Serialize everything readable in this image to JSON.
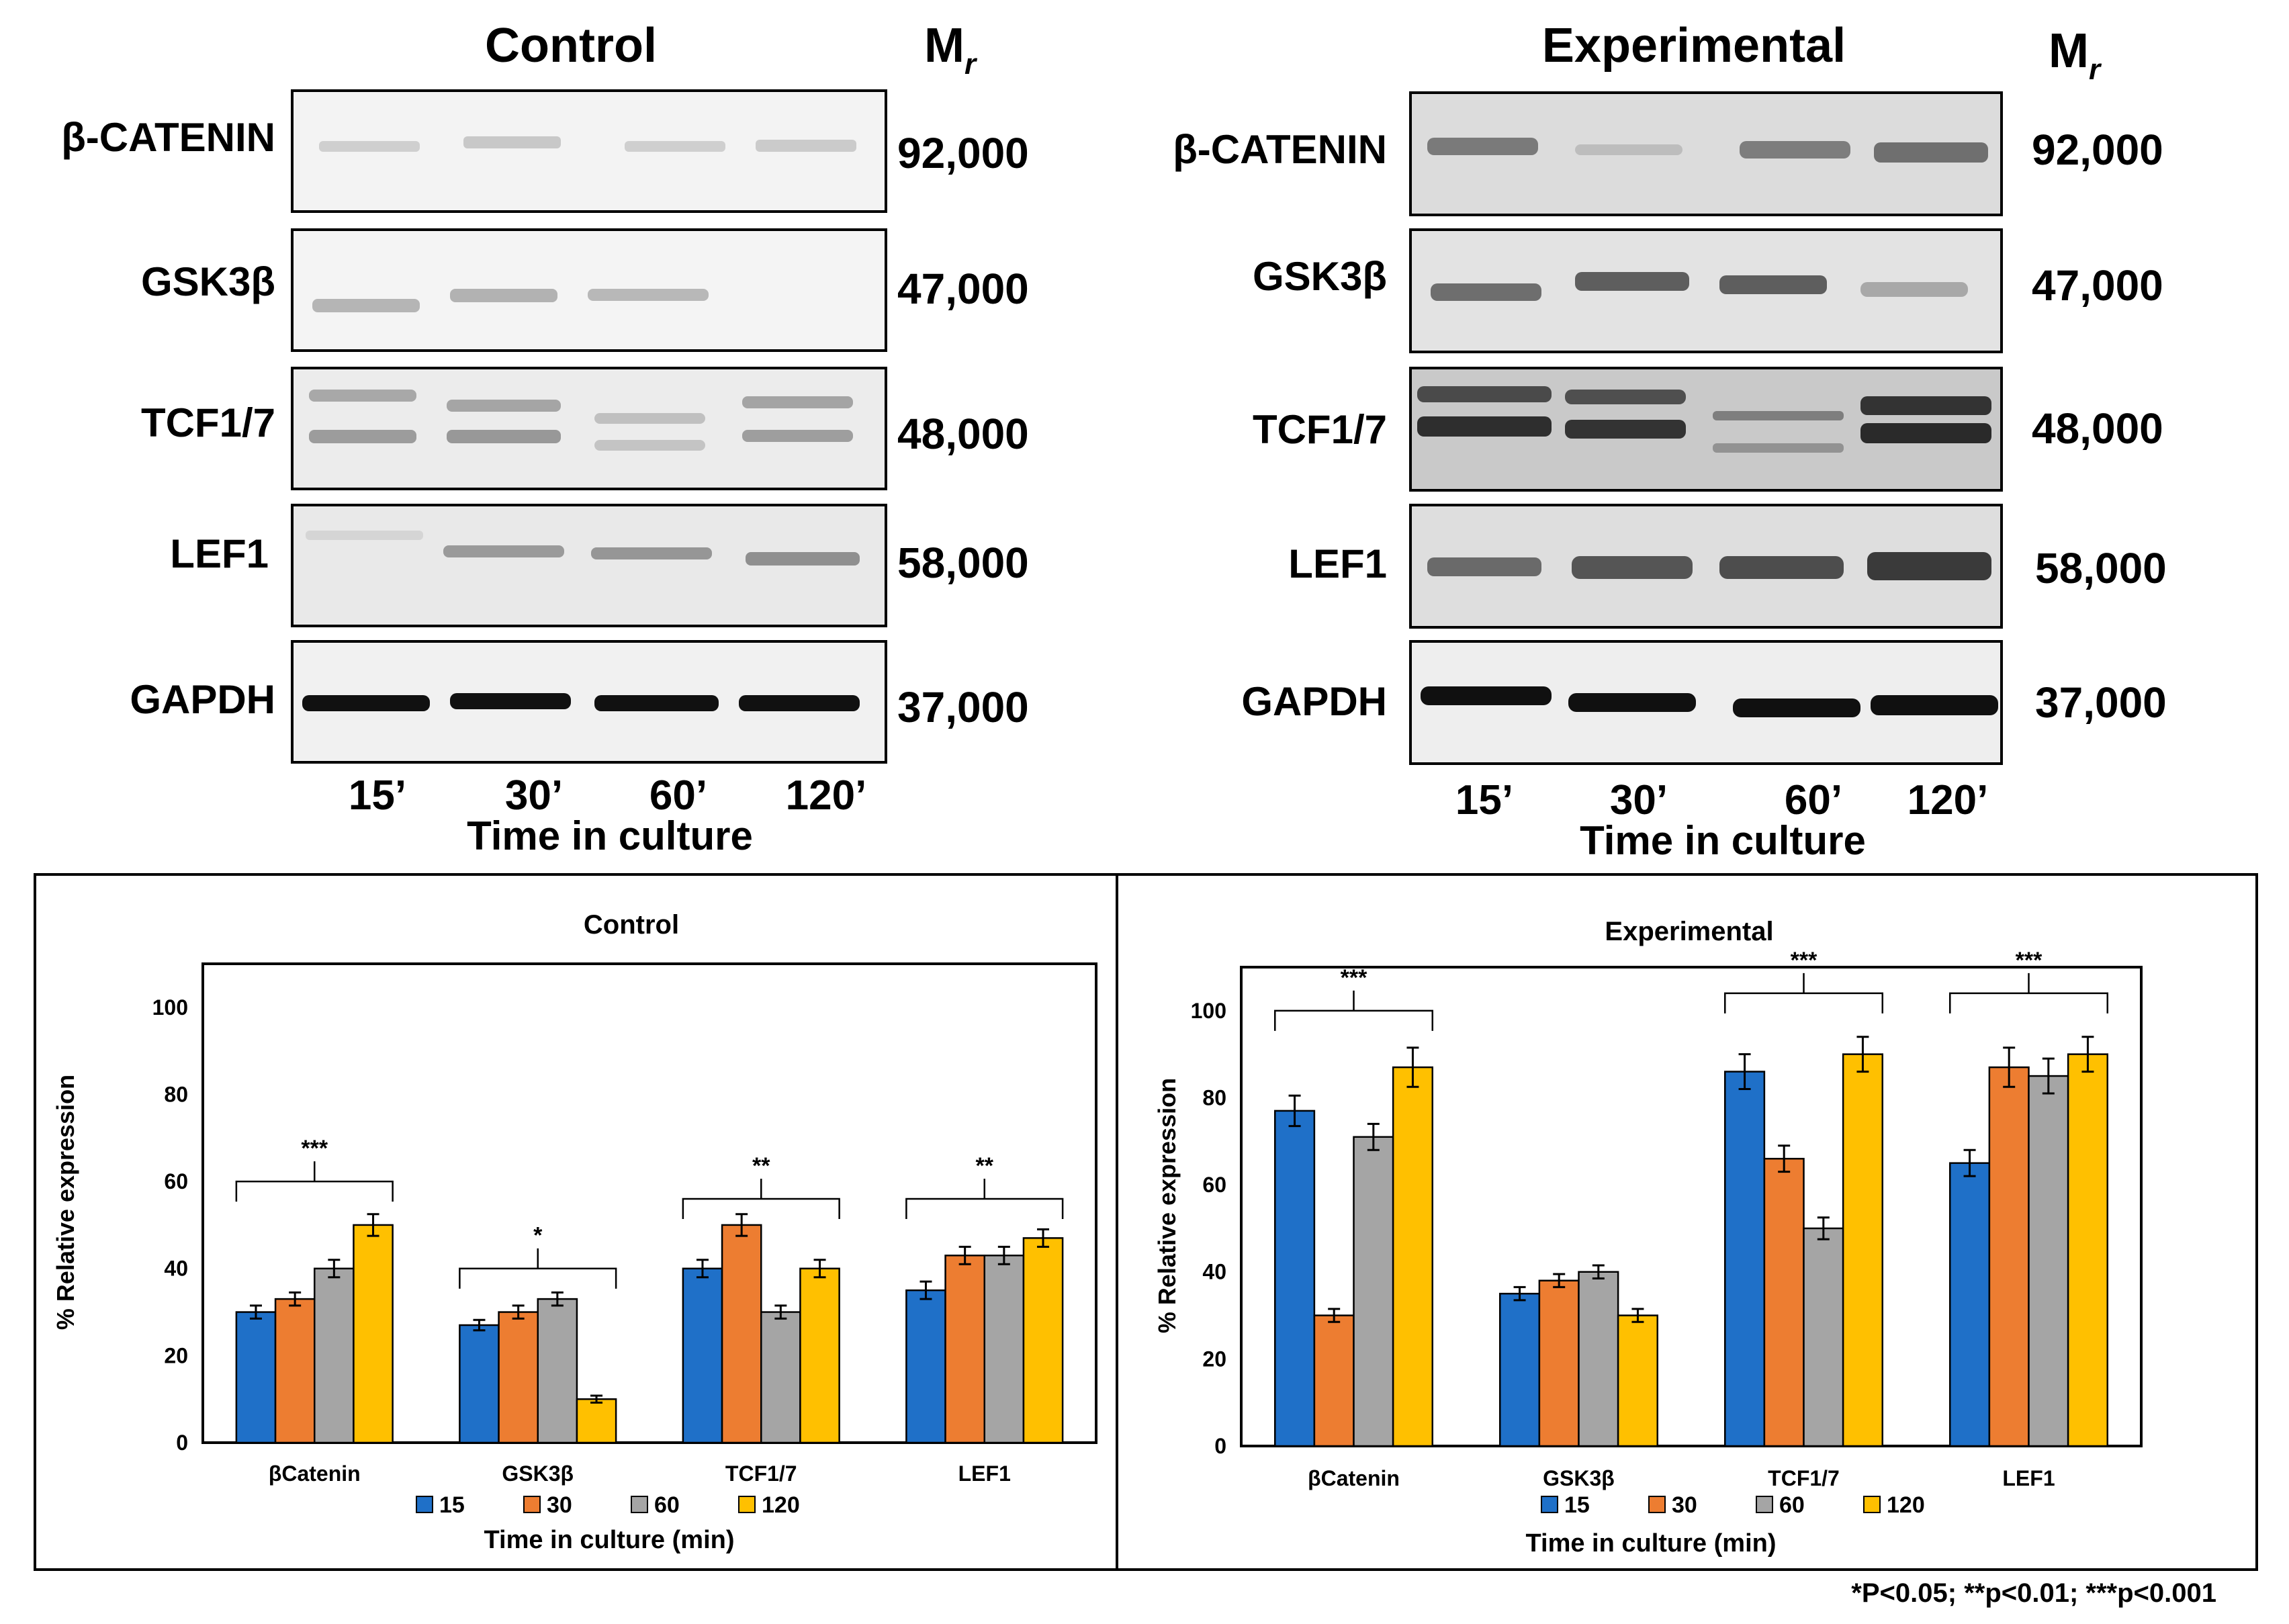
{
  "blots": {
    "control": {
      "title": "Control",
      "mr_label": "M",
      "mr_sub": "r",
      "xlabel": "Time in culture",
      "lanes": [
        "15’",
        "30’",
        "60’",
        "120’"
      ],
      "rows": [
        {
          "label": "β-CATENIN",
          "mr": "92,000",
          "bg": "#f3f3f3"
        },
        {
          "label": "GSK3β",
          "mr": "47,000",
          "bg": "#f4f4f4"
        },
        {
          "label": "TCF1/7",
          "mr": "48,000",
          "bg": "#ececec"
        },
        {
          "label": "LEF1",
          "mr": "58,000",
          "bg": "#e9e9e9"
        },
        {
          "label": "GAPDH",
          "mr": "37,000",
          "bg": "#f1f1f1"
        }
      ]
    },
    "experimental": {
      "title": "Experimental",
      "mr_label": "M",
      "mr_sub": "r",
      "xlabel": "Time in culture",
      "lanes": [
        "15’",
        "30’",
        "60’",
        "120’"
      ],
      "rows": [
        {
          "label": "β-CATENIN",
          "mr": "92,000",
          "bg": "#dcdcdc"
        },
        {
          "label": "GSK3β",
          "mr": "47,000",
          "bg": "#e3e3e3"
        },
        {
          "label": "TCF1/7",
          "mr": "48,000",
          "bg": "#c9c9c9"
        },
        {
          "label": "LEF1",
          "mr": "58,000",
          "bg": "#dedede"
        },
        {
          "label": "GAPDH",
          "mr": "37,000",
          "bg": "#eeeeee"
        }
      ]
    }
  },
  "chart_data": [
    {
      "type": "bar",
      "title": "Control",
      "categories": [
        "βCatenin",
        "GSK3β",
        "TCF1/7",
        "LEF1"
      ],
      "series": [
        {
          "name": "15",
          "color": "#1f70c8",
          "values": [
            30,
            27,
            40,
            35
          ],
          "errors": [
            1.5,
            1.2,
            2,
            2
          ]
        },
        {
          "name": "30",
          "color": "#ed7d31",
          "values": [
            33,
            30,
            50,
            43
          ],
          "errors": [
            1.5,
            1.5,
            2.5,
            2
          ]
        },
        {
          "name": "60",
          "color": "#a5a5a5",
          "values": [
            40,
            33,
            30,
            43
          ],
          "errors": [
            2,
            1.5,
            1.5,
            2
          ]
        },
        {
          "name": "120",
          "color": "#ffc000",
          "values": [
            50,
            10,
            40,
            47
          ],
          "errors": [
            2.5,
            0.8,
            2,
            2
          ]
        }
      ],
      "ylabel": "% Relative expression",
      "xlabel": "Time in culture (min)",
      "ylim": [
        0,
        110
      ],
      "yticks": [
        0,
        20,
        40,
        60,
        80,
        100
      ],
      "significance": [
        {
          "label": "***",
          "category": "βCatenin",
          "level": 60
        },
        {
          "label": "*",
          "category": "GSK3β",
          "level": 40
        },
        {
          "label": "**",
          "category": "TCF1/7",
          "level": 56
        },
        {
          "label": "**",
          "category": "LEF1",
          "level": 56
        }
      ]
    },
    {
      "type": "bar",
      "title": "Experimental",
      "categories": [
        "βCatenin",
        "GSK3β",
        "TCF1/7",
        "LEF1"
      ],
      "series": [
        {
          "name": "15",
          "color": "#1f70c8",
          "values": [
            77,
            35,
            86,
            65
          ],
          "errors": [
            3.5,
            1.5,
            4,
            3
          ]
        },
        {
          "name": "30",
          "color": "#ed7d31",
          "values": [
            30,
            38,
            66,
            87
          ],
          "errors": [
            1.5,
            1.5,
            3,
            4.5
          ]
        },
        {
          "name": "60",
          "color": "#a5a5a5",
          "values": [
            71,
            40,
            50,
            85
          ],
          "errors": [
            3,
            1.5,
            2.5,
            4
          ]
        },
        {
          "name": "120",
          "color": "#ffc000",
          "values": [
            87,
            30,
            90,
            90
          ],
          "errors": [
            4.5,
            1.5,
            4,
            4
          ]
        }
      ],
      "ylabel": "% Relative expression",
      "xlabel": "Time in culture (min)",
      "ylim": [
        0,
        110
      ],
      "yticks": [
        0,
        20,
        40,
        60,
        80,
        100
      ],
      "significance": [
        {
          "label": "***",
          "category": "βCatenin",
          "level": 100
        },
        {
          "label": "***",
          "category": "TCF1/7",
          "level": 104
        },
        {
          "label": "***",
          "category": "LEF1",
          "level": 104
        }
      ]
    }
  ],
  "footnote": "*P<0.05; **p<0.01; ***p<0.001"
}
